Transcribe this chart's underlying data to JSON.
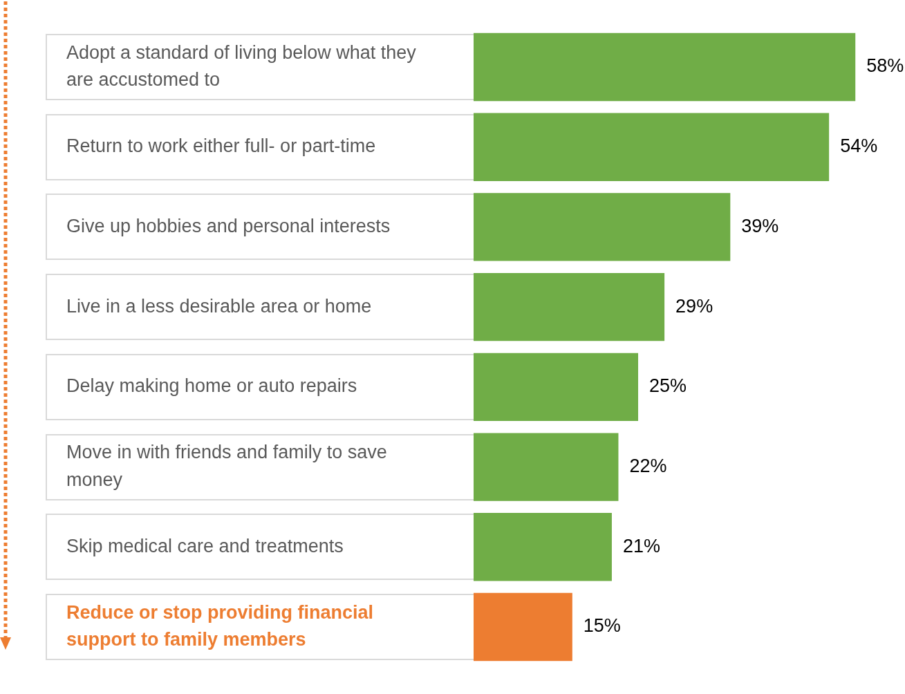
{
  "chart_data": {
    "type": "bar",
    "orientation": "horizontal",
    "categories": [
      "Adopt a standard of living below what they are accustomed to",
      "Return to work either full- or part-time",
      "Give up hobbies and personal interests",
      "Live in a less desirable area or home",
      "Delay making home or auto repairs",
      "Move in with friends and family to save money",
      "Skip medical care and treatments",
      "Reduce or stop providing financial support to family members"
    ],
    "values": [
      58,
      54,
      39,
      29,
      25,
      22,
      21,
      15
    ],
    "colors": [
      "#70ad47",
      "#70ad47",
      "#70ad47",
      "#70ad47",
      "#70ad47",
      "#70ad47",
      "#70ad47",
      "#ed7d31"
    ],
    "value_labels": [
      "58%",
      "54%",
      "39%",
      "29%",
      "25%",
      "22%",
      "21%",
      "15%"
    ]
  }
}
